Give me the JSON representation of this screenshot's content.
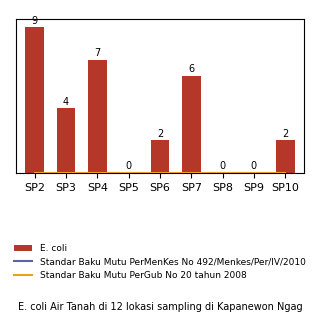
{
  "chart_data": {
    "type": "bar",
    "categories": [
      "SP2",
      "SP3",
      "SP4",
      "SP5",
      "SP6",
      "SP7",
      "SP8",
      "SP9",
      "SP10"
    ],
    "series": [
      {
        "name": "E. coli",
        "type": "bar",
        "color": "#b5372a",
        "values": [
          9,
          4,
          7,
          0,
          2,
          6,
          0,
          0,
          2
        ]
      },
      {
        "name": "Standar Baku Mutu PerMenKes No 492/Menkes/Per/IV/2010",
        "type": "line",
        "color": "#6060b0",
        "values": [
          0,
          0,
          0,
          0,
          0,
          0,
          0,
          0,
          0
        ]
      },
      {
        "name": "Standar Baku Mutu PerGub No 20 tahun 2008",
        "type": "line",
        "color": "#e8a020",
        "values": [
          0,
          0,
          0,
          0,
          0,
          0,
          0,
          0,
          0
        ]
      }
    ],
    "ylim": [
      0,
      9.5
    ],
    "data_labels": true,
    "tick_labels": "x",
    "legend": "lower center",
    "annotations": [
      "E. coli Air Tanah di 12 lokasi sampling di Kapanewon Ngag"
    ]
  }
}
